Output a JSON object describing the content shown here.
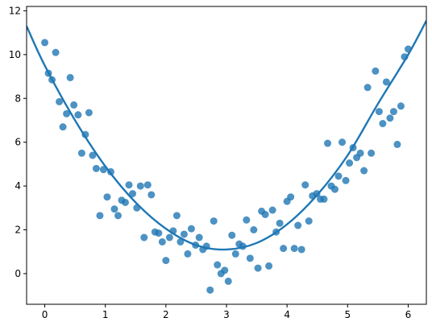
{
  "chart_data": {
    "type": "scatter",
    "title": "",
    "xlabel": "",
    "ylabel": "",
    "xlim": [
      -0.3,
      6.3
    ],
    "ylim": [
      -1.4,
      12.2
    ],
    "xticks": [
      0,
      1,
      2,
      3,
      4,
      5,
      6
    ],
    "yticks": [
      0,
      2,
      4,
      6,
      8,
      10,
      12
    ],
    "grid": false,
    "legend": "none",
    "colors": {
      "points": "#1f77b4",
      "fit": "#1f77b4"
    },
    "series": [
      {
        "kind": "points",
        "points": [
          [
            0.0,
            10.55
          ],
          [
            0.06,
            9.15
          ],
          [
            0.12,
            8.85
          ],
          [
            0.18,
            10.1
          ],
          [
            0.24,
            7.85
          ],
          [
            0.3,
            6.7
          ],
          [
            0.36,
            7.3
          ],
          [
            0.42,
            8.95
          ],
          [
            0.48,
            7.7
          ],
          [
            0.55,
            7.25
          ],
          [
            0.61,
            5.5
          ],
          [
            0.67,
            6.35
          ],
          [
            0.73,
            7.35
          ],
          [
            0.79,
            5.4
          ],
          [
            0.85,
            4.8
          ],
          [
            0.91,
            2.65
          ],
          [
            0.97,
            4.75
          ],
          [
            1.03,
            3.5
          ],
          [
            1.09,
            4.65
          ],
          [
            1.15,
            2.95
          ],
          [
            1.21,
            2.65
          ],
          [
            1.27,
            3.35
          ],
          [
            1.33,
            3.25
          ],
          [
            1.39,
            4.05
          ],
          [
            1.45,
            3.65
          ],
          [
            1.52,
            3.0
          ],
          [
            1.58,
            4.0
          ],
          [
            1.64,
            1.65
          ],
          [
            1.7,
            4.05
          ],
          [
            1.76,
            3.6
          ],
          [
            1.82,
            1.9
          ],
          [
            1.88,
            1.85
          ],
          [
            1.94,
            1.45
          ],
          [
            2.0,
            0.6
          ],
          [
            2.06,
            1.65
          ],
          [
            2.12,
            1.95
          ],
          [
            2.18,
            2.65
          ],
          [
            2.24,
            1.45
          ],
          [
            2.3,
            1.8
          ],
          [
            2.36,
            0.9
          ],
          [
            2.42,
            2.05
          ],
          [
            2.49,
            1.3
          ],
          [
            2.55,
            1.65
          ],
          [
            2.61,
            1.1
          ],
          [
            2.67,
            1.25
          ],
          [
            2.73,
            -0.75
          ],
          [
            2.79,
            2.4
          ],
          [
            2.85,
            0.4
          ],
          [
            2.91,
            0.0
          ],
          [
            2.97,
            0.15
          ],
          [
            3.03,
            -0.35
          ],
          [
            3.09,
            1.75
          ],
          [
            3.15,
            0.9
          ],
          [
            3.21,
            1.35
          ],
          [
            3.27,
            1.25
          ],
          [
            3.33,
            2.45
          ],
          [
            3.39,
            0.7
          ],
          [
            3.45,
            2.0
          ],
          [
            3.52,
            0.25
          ],
          [
            3.58,
            2.85
          ],
          [
            3.64,
            2.7
          ],
          [
            3.7,
            0.35
          ],
          [
            3.76,
            2.9
          ],
          [
            3.82,
            1.9
          ],
          [
            3.88,
            2.3
          ],
          [
            3.94,
            1.15
          ],
          [
            4.0,
            3.3
          ],
          [
            4.06,
            3.5
          ],
          [
            4.12,
            1.15
          ],
          [
            4.18,
            2.2
          ],
          [
            4.24,
            1.1
          ],
          [
            4.3,
            4.05
          ],
          [
            4.36,
            2.4
          ],
          [
            4.42,
            3.55
          ],
          [
            4.49,
            3.65
          ],
          [
            4.55,
            3.4
          ],
          [
            4.61,
            3.4
          ],
          [
            4.67,
            5.95
          ],
          [
            4.73,
            4.0
          ],
          [
            4.79,
            3.85
          ],
          [
            4.85,
            4.45
          ],
          [
            4.91,
            6.0
          ],
          [
            4.97,
            4.25
          ],
          [
            5.03,
            5.05
          ],
          [
            5.09,
            5.75
          ],
          [
            5.15,
            5.3
          ],
          [
            5.21,
            5.5
          ],
          [
            5.27,
            4.7
          ],
          [
            5.33,
            8.5
          ],
          [
            5.39,
            5.5
          ],
          [
            5.46,
            9.25
          ],
          [
            5.52,
            7.4
          ],
          [
            5.58,
            6.85
          ],
          [
            5.64,
            8.75
          ],
          [
            5.7,
            7.1
          ],
          [
            5.76,
            7.4
          ],
          [
            5.82,
            5.9
          ],
          [
            5.88,
            7.65
          ],
          [
            5.94,
            9.9
          ],
          [
            6.0,
            10.25
          ]
        ]
      },
      {
        "kind": "fit-line",
        "points": [
          [
            -0.3,
            11.3
          ],
          [
            0.0,
            9.5
          ],
          [
            0.5,
            7.0
          ],
          [
            1.0,
            4.9
          ],
          [
            1.5,
            3.25
          ],
          [
            2.0,
            2.05
          ],
          [
            2.5,
            1.3
          ],
          [
            3.0,
            1.1
          ],
          [
            3.5,
            1.4
          ],
          [
            4.0,
            2.25
          ],
          [
            4.5,
            3.6
          ],
          [
            5.0,
            5.4
          ],
          [
            5.5,
            7.75
          ],
          [
            6.0,
            10.0
          ],
          [
            6.3,
            11.55
          ]
        ]
      }
    ]
  }
}
